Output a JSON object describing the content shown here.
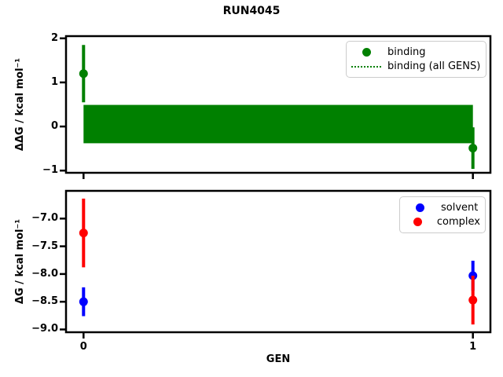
{
  "figure": {
    "title": "RUN4045"
  },
  "chart_data": [
    {
      "type": "scatter",
      "title": "RUN4045",
      "xlabel": "",
      "ylabel": "ΔΔG / kcal mol⁻¹",
      "xlim": [
        -0.045,
        1.045
      ],
      "ylim": [
        -1.05,
        2.05
      ],
      "yticks": [
        2,
        1,
        0,
        -1
      ],
      "ytick_labels": [
        "2",
        "1",
        "0",
        "−1"
      ],
      "xticks": [
        0,
        1
      ],
      "xtick_labels": null,
      "grid": false,
      "legend_position": "upper right",
      "series": [
        {
          "name": "binding",
          "color": "#008000",
          "marker": "circle",
          "x": [
            0,
            1
          ],
          "y": [
            1.2,
            -0.49
          ],
          "yerr": [
            0.65,
            0.47
          ]
        }
      ],
      "band": {
        "name": "binding (all GENS)",
        "color": "#008000",
        "x": [
          0,
          1
        ],
        "y_center": 0.06,
        "y_lo": -0.38,
        "y_hi": 0.49,
        "center_line_style": "dotted"
      },
      "legend": [
        {
          "label": "binding",
          "marker": "dot",
          "color": "#008000"
        },
        {
          "label": "binding (all GENS)",
          "marker": "dotted-line",
          "color": "#008000"
        }
      ]
    },
    {
      "type": "scatter",
      "title": "",
      "xlabel": "GEN",
      "ylabel": "ΔG / kcal mol⁻¹",
      "xlim": [
        -0.045,
        1.045
      ],
      "ylim": [
        -9.05,
        -6.5
      ],
      "yticks": [
        -7.0,
        -7.5,
        -8.0,
        -8.5,
        -9.0
      ],
      "ytick_labels": [
        "−7.0",
        "−7.5",
        "−8.0",
        "−8.5",
        "−9.0"
      ],
      "xticks": [
        0,
        1
      ],
      "xtick_labels": [
        "0",
        "1"
      ],
      "grid": false,
      "legend_position": "upper right",
      "series": [
        {
          "name": "solvent",
          "color": "#0000ff",
          "marker": "circle",
          "x": [
            0,
            1
          ],
          "y": [
            -8.5,
            -8.03
          ],
          "yerr": [
            0.26,
            0.27
          ]
        },
        {
          "name": "complex",
          "color": "#ff0000",
          "marker": "circle",
          "x": [
            0,
            1
          ],
          "y": [
            -7.26,
            -8.47
          ],
          "yerr": [
            0.62,
            0.44
          ]
        }
      ],
      "legend": [
        {
          "label": "solvent",
          "marker": "dot",
          "color": "#0000ff"
        },
        {
          "label": "complex",
          "marker": "dot",
          "color": "#ff0000"
        }
      ]
    }
  ]
}
